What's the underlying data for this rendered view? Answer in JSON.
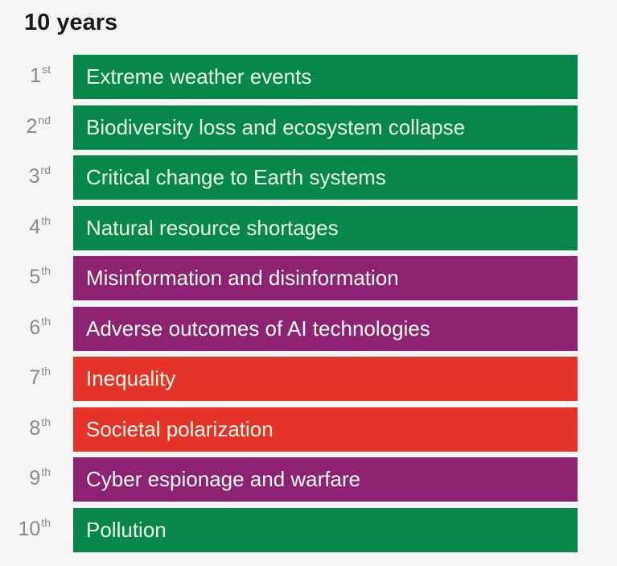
{
  "title": "10 years",
  "colors": {
    "environmental": "#07874b",
    "technological": "#8d2372",
    "societal": "#e6332a"
  },
  "items": [
    {
      "num": "1",
      "suffix": "st",
      "label": "Extreme weather events",
      "category": "environmental"
    },
    {
      "num": "2",
      "suffix": "nd",
      "label": "Biodiversity loss and ecosystem collapse",
      "category": "environmental"
    },
    {
      "num": "3",
      "suffix": "rd",
      "label": "Critical change to Earth systems",
      "category": "environmental"
    },
    {
      "num": "4",
      "suffix": "th",
      "label": "Natural resource shortages",
      "category": "environmental"
    },
    {
      "num": "5",
      "suffix": "th",
      "label": "Misinformation and disinformation",
      "category": "technological"
    },
    {
      "num": "6",
      "suffix": "th",
      "label": "Adverse outcomes of AI technologies",
      "category": "technological"
    },
    {
      "num": "7",
      "suffix": "th",
      "label": "Inequality",
      "category": "societal"
    },
    {
      "num": "8",
      "suffix": "th",
      "label": "Societal polarization",
      "category": "societal"
    },
    {
      "num": "9",
      "suffix": "th",
      "label": "Cyber espionage and warfare",
      "category": "technological"
    },
    {
      "num": "10",
      "suffix": "th",
      "label": "Pollution",
      "category": "environmental"
    }
  ]
}
